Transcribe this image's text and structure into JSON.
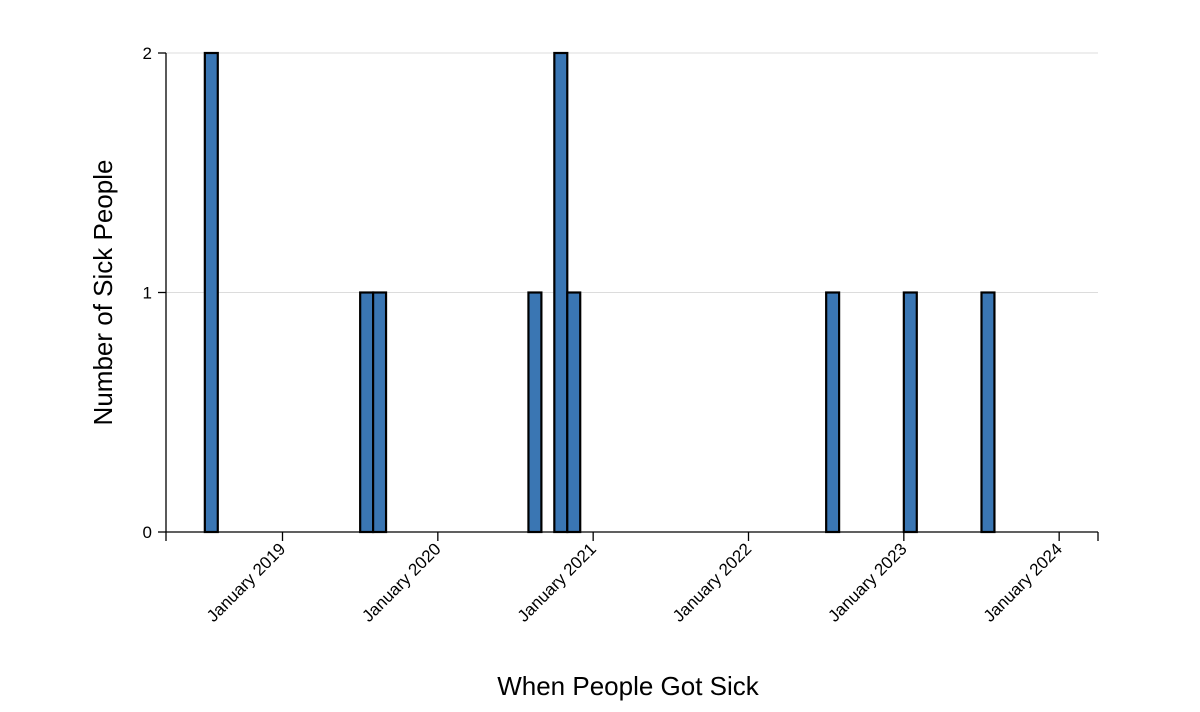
{
  "chart_data": {
    "type": "bar",
    "title": "",
    "xlabel": "When People Got Sick",
    "ylabel": "Number of Sick People",
    "ylim": [
      0,
      2
    ],
    "yticks": [
      "0",
      "1",
      "2"
    ],
    "xlim": [
      "2018-04",
      "2024-04"
    ],
    "xticks": [
      {
        "date": "2019-01",
        "label": "January 2019"
      },
      {
        "date": "2020-01",
        "label": "January 2020"
      },
      {
        "date": "2021-01",
        "label": "January 2021"
      },
      {
        "date": "2022-01",
        "label": "January 2022"
      },
      {
        "date": "2023-01",
        "label": "January 2023"
      },
      {
        "date": "2024-01",
        "label": "January 2024"
      }
    ],
    "bin_width_months": 1,
    "bins": [
      {
        "start": "2018-07",
        "value": 2
      },
      {
        "start": "2019-07",
        "value": 1
      },
      {
        "start": "2019-08",
        "value": 1
      },
      {
        "start": "2020-08",
        "value": 1
      },
      {
        "start": "2020-10",
        "value": 2
      },
      {
        "start": "2020-11",
        "value": 1
      },
      {
        "start": "2022-07",
        "value": 1
      },
      {
        "start": "2023-01",
        "value": 1
      },
      {
        "start": "2023-07",
        "value": 1
      }
    ],
    "bar_color": "#3a76b3",
    "grid": true
  }
}
